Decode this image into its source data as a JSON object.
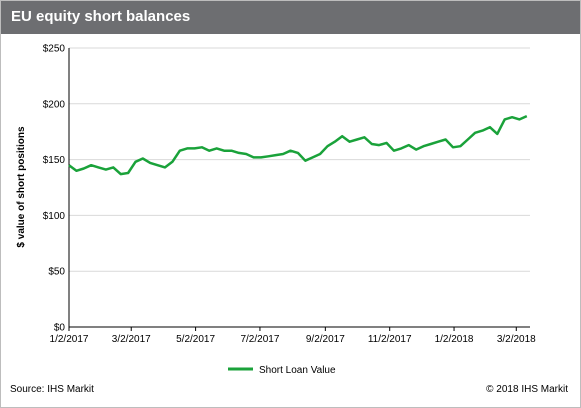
{
  "header": {
    "title": "EU equity short balances"
  },
  "footer": {
    "source": "Source: IHS Markit",
    "copyright": "© 2018 IHS Markit"
  },
  "colors": {
    "line": "#1aa23a",
    "grid": "#d9d9d9",
    "header_bg": "#6d6e71"
  },
  "chart_data": {
    "type": "line",
    "title": "EU equity short balances",
    "ylabel": "$ value of short positions",
    "xlabel": "",
    "ylim": [
      0,
      250
    ],
    "xlim": [
      "2017-01-02",
      "2018-03-15"
    ],
    "y_ticks": [
      "$0",
      "$50",
      "$100",
      "$150",
      "$200",
      "$250"
    ],
    "y_tick_values": [
      0,
      50,
      100,
      150,
      200,
      250
    ],
    "x_ticks": [
      "1/2/2017",
      "3/2/2017",
      "5/2/2017",
      "7/2/2017",
      "9/2/2017",
      "11/2/2017",
      "1/2/2018",
      "3/2/2018"
    ],
    "x_tick_dates": [
      "2017-01-02",
      "2017-03-02",
      "2017-05-02",
      "2017-07-02",
      "2017-09-02",
      "2017-11-02",
      "2018-01-02",
      "2018-03-02"
    ],
    "grid": "horizontal",
    "legend_position": "bottom",
    "series": [
      {
        "name": "Short Loan Value",
        "x": [
          "2017-01-02",
          "2017-01-09",
          "2017-01-16",
          "2017-01-23",
          "2017-01-30",
          "2017-02-06",
          "2017-02-13",
          "2017-02-20",
          "2017-02-27",
          "2017-03-06",
          "2017-03-13",
          "2017-03-20",
          "2017-03-27",
          "2017-04-03",
          "2017-04-10",
          "2017-04-17",
          "2017-04-24",
          "2017-05-01",
          "2017-05-08",
          "2017-05-15",
          "2017-05-22",
          "2017-05-29",
          "2017-06-05",
          "2017-06-12",
          "2017-06-19",
          "2017-06-26",
          "2017-07-03",
          "2017-07-10",
          "2017-07-17",
          "2017-07-24",
          "2017-07-31",
          "2017-08-07",
          "2017-08-14",
          "2017-08-21",
          "2017-08-28",
          "2017-09-04",
          "2017-09-11",
          "2017-09-18",
          "2017-09-25",
          "2017-10-02",
          "2017-10-09",
          "2017-10-16",
          "2017-10-23",
          "2017-10-30",
          "2017-11-06",
          "2017-11-13",
          "2017-11-20",
          "2017-11-27",
          "2017-12-04",
          "2017-12-11",
          "2017-12-18",
          "2017-12-25",
          "2018-01-01",
          "2018-01-08",
          "2018-01-15",
          "2018-01-22",
          "2018-01-29",
          "2018-02-05",
          "2018-02-12",
          "2018-02-19",
          "2018-02-26",
          "2018-03-05",
          "2018-03-12"
        ],
        "values": [
          145,
          140,
          142,
          145,
          143,
          141,
          143,
          137,
          138,
          148,
          151,
          147,
          145,
          143,
          148,
          158,
          160,
          160,
          161,
          158,
          160,
          158,
          158,
          156,
          155,
          152,
          152,
          153,
          154,
          155,
          158,
          156,
          149,
          152,
          155,
          162,
          166,
          171,
          166,
          168,
          170,
          164,
          163,
          165,
          158,
          160,
          163,
          159,
          162,
          164,
          166,
          168,
          161,
          162,
          168,
          174,
          176,
          179,
          173,
          186,
          188,
          186,
          189
        ],
        "color": "#1aa23a"
      }
    ]
  }
}
